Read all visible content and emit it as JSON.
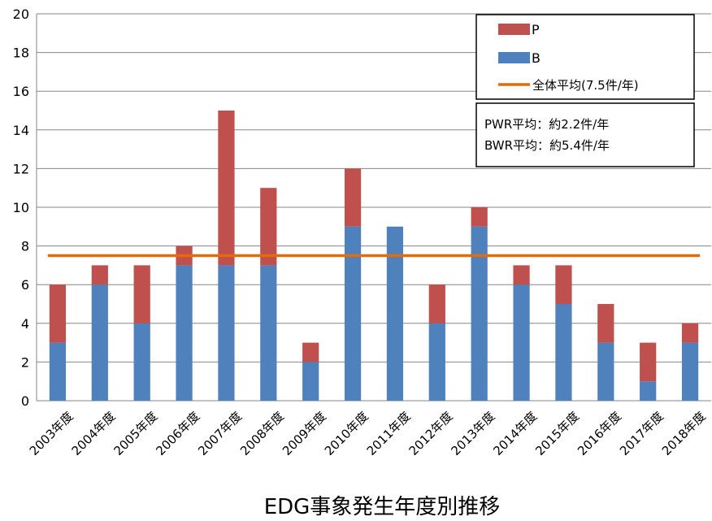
{
  "chart_data": {
    "type": "bar",
    "stacked": true,
    "categories": [
      "2003年度",
      "2004年度",
      "2005年度",
      "2006年度",
      "2007年度",
      "2008年度",
      "2009年度",
      "2010年度",
      "2011年度",
      "2012年度",
      "2013年度",
      "2014年度",
      "2015年度",
      "2016年度",
      "2017年度",
      "2018年度"
    ],
    "series": [
      {
        "name": "B",
        "color": "#4F81BD",
        "values": [
          3,
          6,
          4,
          7,
          7,
          7,
          2,
          9,
          9,
          4,
          9,
          6,
          5,
          3,
          1,
          3
        ]
      },
      {
        "name": "P",
        "color": "#C0504D",
        "values": [
          3,
          1,
          3,
          1,
          8,
          4,
          1,
          3,
          0,
          2,
          1,
          1,
          2,
          2,
          2,
          1
        ]
      }
    ],
    "reference_line": {
      "name": "全体平均(7.5件/年)",
      "value": 7.5,
      "color": "#E36C09"
    },
    "ylim": [
      0,
      20
    ],
    "yticks": [
      0,
      2,
      4,
      6,
      8,
      10,
      12,
      14,
      16,
      18,
      20
    ],
    "grid": true,
    "legend_position": "top-right",
    "annotation": [
      "PWR平均：約2.2件/年",
      "BWR平均：約5.4件/年"
    ],
    "xlabel": "EDG事象発生年度別推移",
    "ylabel": ""
  }
}
